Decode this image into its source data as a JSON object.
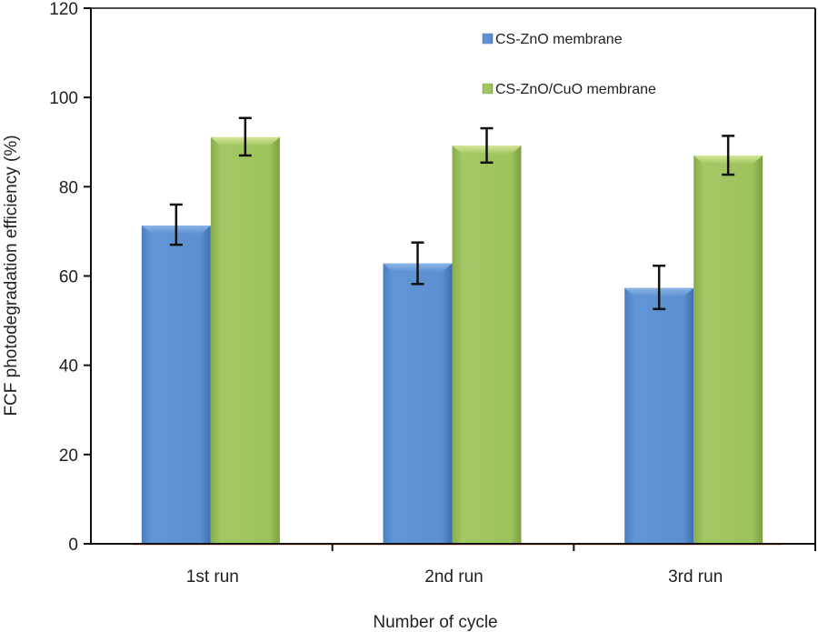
{
  "chart_data": {
    "type": "bar",
    "title": "",
    "xlabel": "Number of cycle",
    "ylabel": "FCF photodegradation efficiency (%)",
    "ylim": [
      0,
      120
    ],
    "yticks": [
      0,
      20,
      40,
      60,
      80,
      100,
      120
    ],
    "ytick_labels": [
      "0",
      "20",
      "40",
      "60",
      "80",
      "100",
      "120"
    ],
    "categories": [
      "1st run",
      "2nd run",
      "3rd run"
    ],
    "legend_position": "top-right",
    "grid": false,
    "series": [
      {
        "name": "CS-ZnO membrane",
        "color": "#5b8fd0",
        "values": [
          71.3,
          62.8,
          57.3
        ],
        "error_upper": [
          76.0,
          67.5,
          62.3
        ],
        "error_lower": [
          67.0,
          58.2,
          52.6
        ]
      },
      {
        "name": "CS-ZnO/CuO membrane",
        "color": "#9dc35a",
        "values": [
          91.1,
          89.2,
          87.0
        ],
        "error_upper": [
          95.4,
          93.1,
          91.4
        ],
        "error_lower": [
          87.0,
          85.4,
          82.7
        ]
      }
    ]
  }
}
